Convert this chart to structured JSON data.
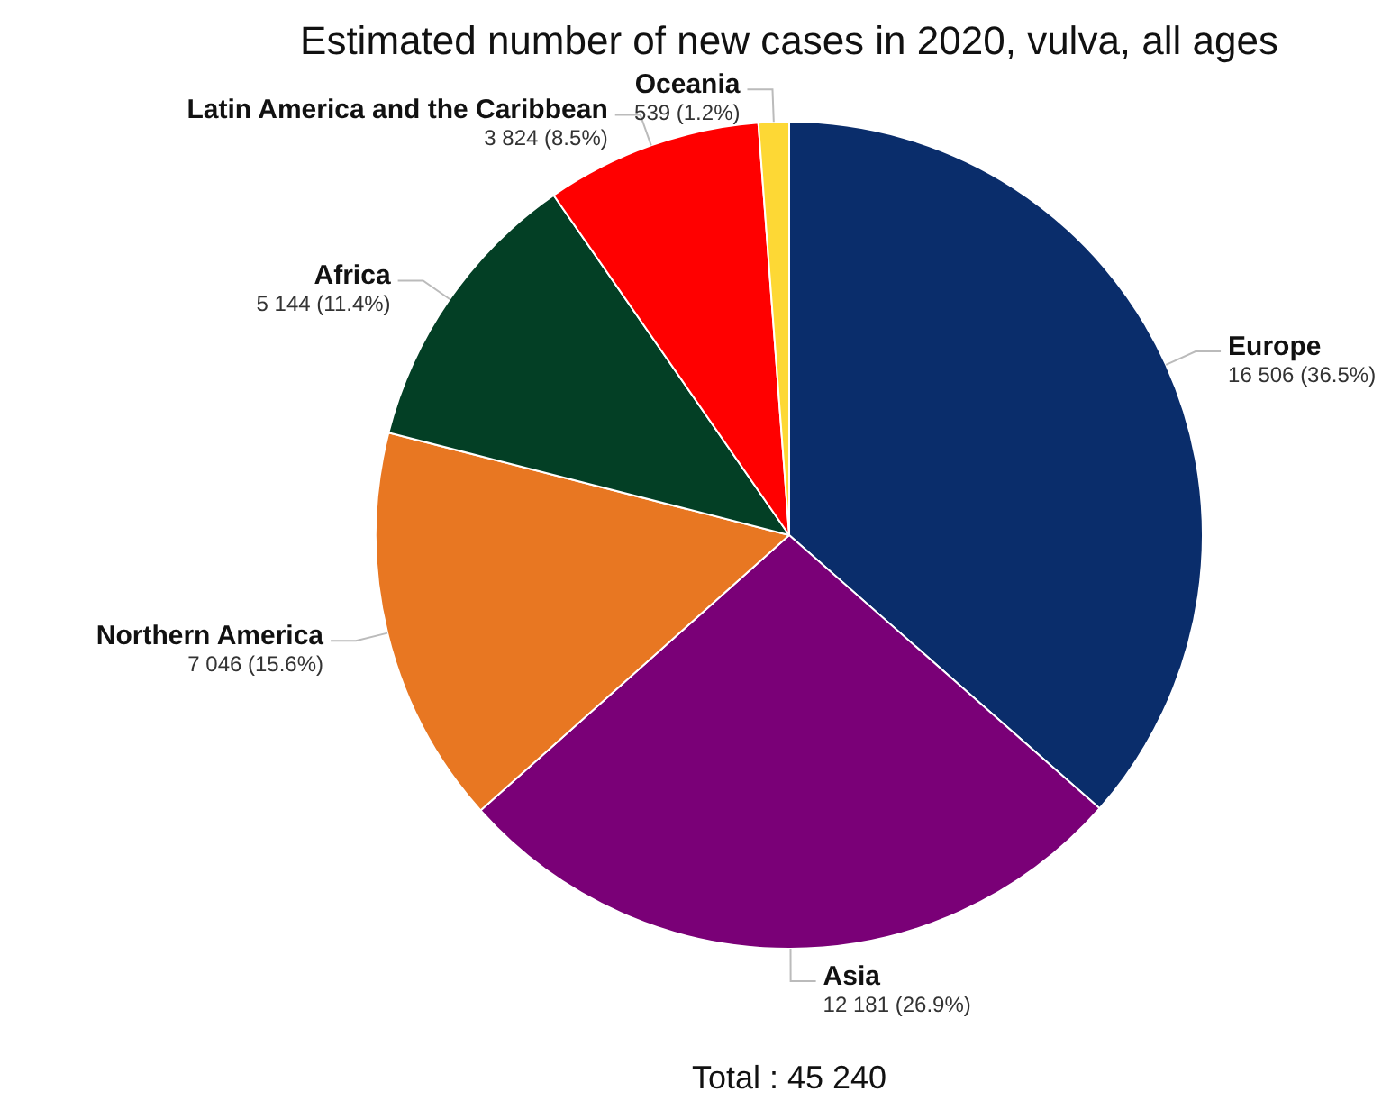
{
  "chart_data": {
    "type": "pie",
    "title": "Estimated number of new cases in 2020, vulva, all ages",
    "categories": [
      "Europe",
      "Asia",
      "Northern America",
      "Africa",
      "Latin America and the Caribbean",
      "Oceania"
    ],
    "values": [
      16506,
      12181,
      7046,
      5144,
      3824,
      539
    ],
    "colors": [
      "#0a2d6b",
      "#7a0077",
      "#e87722",
      "#033f25",
      "#ff0000",
      "#fdd835"
    ],
    "value_labels": [
      "16 506 (36.5%)",
      "12 181 (26.9%)",
      "7 046 (15.6%)",
      "5 144 (11.4%)",
      "3 824 (8.5%)",
      "539 (1.2%)"
    ],
    "annotations": [
      "Total : 45 240"
    ],
    "legend": false
  }
}
